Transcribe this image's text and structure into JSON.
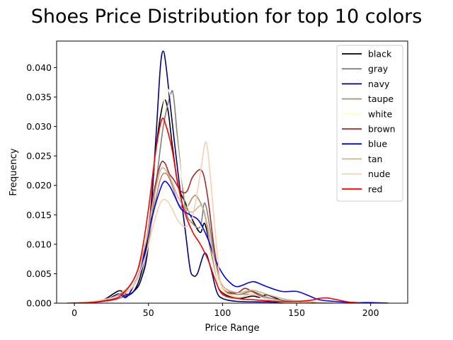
{
  "chart_data": {
    "type": "line",
    "title": "Shoes Price Distribution for top 10 colors",
    "xlabel": "Price Range",
    "ylabel": "Frequency",
    "xlim": [
      -12,
      225
    ],
    "ylim": [
      0,
      0.0445
    ],
    "xticks": [
      0,
      50,
      100,
      150,
      200
    ],
    "xtick_labels": [
      "0",
      "50",
      "100",
      "150",
      "200"
    ],
    "yticks": [
      0.0,
      0.005,
      0.01,
      0.015,
      0.02,
      0.025,
      0.03,
      0.035,
      0.04
    ],
    "ytick_labels": [
      "0.000",
      "0.005",
      "0.010",
      "0.015",
      "0.020",
      "0.025",
      "0.030",
      "0.035",
      "0.040"
    ],
    "grid": false,
    "legend_position": "top-right",
    "series": [
      {
        "name": "black",
        "color": "#000000",
        "points": [
          [
            -5,
            0
          ],
          [
            10,
            0.0001
          ],
          [
            20,
            0.0006
          ],
          [
            30,
            0.0021
          ],
          [
            35,
            0.0015
          ],
          [
            40,
            0.002
          ],
          [
            45,
            0.005
          ],
          [
            50,
            0.012
          ],
          [
            55,
            0.026
          ],
          [
            60,
            0.034
          ],
          [
            63,
            0.033
          ],
          [
            66,
            0.027
          ],
          [
            70,
            0.02
          ],
          [
            75,
            0.017
          ],
          [
            80,
            0.014
          ],
          [
            85,
            0.012
          ],
          [
            88,
            0.0135
          ],
          [
            92,
            0.009
          ],
          [
            96,
            0.004
          ],
          [
            100,
            0.0018
          ],
          [
            110,
            0.0008
          ],
          [
            120,
            0.0012
          ],
          [
            125,
            0.001
          ],
          [
            130,
            0.0014
          ],
          [
            140,
            0.0005
          ],
          [
            150,
            0.0002
          ],
          [
            165,
            0
          ]
        ]
      },
      {
        "name": "gray",
        "color": "#808080",
        "points": [
          [
            -5,
            0
          ],
          [
            10,
            0.0001
          ],
          [
            20,
            0.0003
          ],
          [
            30,
            0.0008
          ],
          [
            40,
            0.002
          ],
          [
            45,
            0.004
          ],
          [
            50,
            0.01
          ],
          [
            55,
            0.02
          ],
          [
            60,
            0.03
          ],
          [
            65,
            0.0355
          ],
          [
            67,
            0.035
          ],
          [
            70,
            0.027
          ],
          [
            75,
            0.016
          ],
          [
            80,
            0.0135
          ],
          [
            85,
            0.013
          ],
          [
            88,
            0.017
          ],
          [
            92,
            0.012
          ],
          [
            96,
            0.006
          ],
          [
            100,
            0.003
          ],
          [
            110,
            0.0015
          ],
          [
            120,
            0.002
          ],
          [
            130,
            0.001
          ],
          [
            140,
            0.0005
          ],
          [
            150,
            0.0002
          ],
          [
            160,
            0
          ]
        ]
      },
      {
        "name": "navy",
        "color": "#000080",
        "points": [
          [
            -5,
            0
          ],
          [
            10,
            0.0001
          ],
          [
            20,
            0.0004
          ],
          [
            30,
            0.0016
          ],
          [
            35,
            0.0012
          ],
          [
            40,
            0.002
          ],
          [
            45,
            0.004
          ],
          [
            50,
            0.01
          ],
          [
            55,
            0.028
          ],
          [
            58,
            0.04
          ],
          [
            60,
            0.0428
          ],
          [
            62,
            0.04
          ],
          [
            65,
            0.033
          ],
          [
            70,
            0.022
          ],
          [
            75,
            0.012
          ],
          [
            78,
            0.006
          ],
          [
            80,
            0.0047
          ],
          [
            83,
            0.005
          ],
          [
            88,
            0.0085
          ],
          [
            92,
            0.006
          ],
          [
            96,
            0.002
          ],
          [
            100,
            0.0008
          ],
          [
            110,
            0.0003
          ],
          [
            130,
            0.0002
          ],
          [
            150,
            0.0001
          ],
          [
            170,
            0
          ]
        ]
      },
      {
        "name": "taupe",
        "color": "#b38b6d",
        "points": [
          [
            -5,
            0
          ],
          [
            10,
            0.0002
          ],
          [
            20,
            0.0005
          ],
          [
            30,
            0.0012
          ],
          [
            40,
            0.003
          ],
          [
            48,
            0.008
          ],
          [
            53,
            0.015
          ],
          [
            58,
            0.021
          ],
          [
            62,
            0.022
          ],
          [
            66,
            0.02
          ],
          [
            70,
            0.017
          ],
          [
            75,
            0.016
          ],
          [
            80,
            0.018
          ],
          [
            83,
            0.018
          ],
          [
            88,
            0.015
          ],
          [
            92,
            0.009
          ],
          [
            96,
            0.004
          ],
          [
            100,
            0.002
          ],
          [
            110,
            0.0015
          ],
          [
            120,
            0.0015
          ],
          [
            130,
            0.0008
          ],
          [
            140,
            0.0003
          ],
          [
            160,
            0
          ]
        ]
      },
      {
        "name": "white",
        "color": "#fffacd",
        "points": [
          [
            -5,
            0
          ],
          [
            10,
            0.0002
          ],
          [
            20,
            0.0006
          ],
          [
            30,
            0.0012
          ],
          [
            40,
            0.004
          ],
          [
            48,
            0.012
          ],
          [
            53,
            0.022
          ],
          [
            58,
            0.03
          ],
          [
            62,
            0.036
          ],
          [
            65,
            0.035
          ],
          [
            68,
            0.03
          ],
          [
            72,
            0.022
          ],
          [
            77,
            0.016
          ],
          [
            82,
            0.014
          ],
          [
            88,
            0.012
          ],
          [
            92,
            0.008
          ],
          [
            96,
            0.004
          ],
          [
            100,
            0.002
          ],
          [
            110,
            0.001
          ],
          [
            120,
            0.0015
          ],
          [
            130,
            0.0008
          ],
          [
            140,
            0.0003
          ],
          [
            160,
            0
          ]
        ]
      },
      {
        "name": "brown",
        "color": "#a52a2a",
        "points": [
          [
            -5,
            0
          ],
          [
            10,
            0.0001
          ],
          [
            20,
            0.0004
          ],
          [
            30,
            0.0012
          ],
          [
            40,
            0.004
          ],
          [
            48,
            0.01
          ],
          [
            53,
            0.018
          ],
          [
            58,
            0.0235
          ],
          [
            61,
            0.0238
          ],
          [
            64,
            0.022
          ],
          [
            67,
            0.021
          ],
          [
            72,
            0.019
          ],
          [
            76,
            0.019
          ],
          [
            80,
            0.0215
          ],
          [
            86,
            0.0225
          ],
          [
            90,
            0.018
          ],
          [
            94,
            0.01
          ],
          [
            98,
            0.004
          ],
          [
            102,
            0.002
          ],
          [
            110,
            0.0018
          ],
          [
            115,
            0.0025
          ],
          [
            120,
            0.002
          ],
          [
            130,
            0.0007
          ],
          [
            140,
            0.0002
          ],
          [
            160,
            0
          ]
        ]
      },
      {
        "name": "blue",
        "color": "#0000ff",
        "points": [
          [
            -5,
            0
          ],
          [
            10,
            0.0001
          ],
          [
            20,
            0.0004
          ],
          [
            30,
            0.0014
          ],
          [
            35,
            0.001
          ],
          [
            40,
            0.003
          ],
          [
            45,
            0.006
          ],
          [
            50,
            0.012
          ],
          [
            55,
            0.017
          ],
          [
            60,
            0.0205
          ],
          [
            64,
            0.02
          ],
          [
            68,
            0.018
          ],
          [
            72,
            0.016
          ],
          [
            78,
            0.015
          ],
          [
            84,
            0.014
          ],
          [
            90,
            0.011
          ],
          [
            95,
            0.0075
          ],
          [
            100,
            0.005
          ],
          [
            105,
            0.0035
          ],
          [
            110,
            0.0028
          ],
          [
            118,
            0.0035
          ],
          [
            122,
            0.0036
          ],
          [
            130,
            0.0028
          ],
          [
            140,
            0.002
          ],
          [
            150,
            0.002
          ],
          [
            158,
            0.0013
          ],
          [
            165,
            0.0006
          ],
          [
            175,
            0.0003
          ],
          [
            190,
            0.0001
          ],
          [
            200,
            0.0001
          ],
          [
            212,
            0
          ]
        ]
      },
      {
        "name": "tan",
        "color": "#d2b48c",
        "points": [
          [
            -5,
            0
          ],
          [
            10,
            0.0002
          ],
          [
            20,
            0.0006
          ],
          [
            30,
            0.0015
          ],
          [
            40,
            0.004
          ],
          [
            48,
            0.01
          ],
          [
            53,
            0.017
          ],
          [
            58,
            0.0225
          ],
          [
            62,
            0.0225
          ],
          [
            66,
            0.0205
          ],
          [
            70,
            0.018
          ],
          [
            75,
            0.016
          ],
          [
            80,
            0.0155
          ],
          [
            86,
            0.0165
          ],
          [
            90,
            0.013
          ],
          [
            95,
            0.007
          ],
          [
            100,
            0.003
          ],
          [
            110,
            0.0018
          ],
          [
            120,
            0.0022
          ],
          [
            130,
            0.0015
          ],
          [
            140,
            0.0008
          ],
          [
            150,
            0.0004
          ],
          [
            160,
            0.0002
          ],
          [
            175,
            0
          ]
        ]
      },
      {
        "name": "nude",
        "color": "#f5cfb0",
        "points": [
          [
            -5,
            0
          ],
          [
            10,
            0.0002
          ],
          [
            20,
            0.0006
          ],
          [
            30,
            0.0012
          ],
          [
            40,
            0.003
          ],
          [
            48,
            0.008
          ],
          [
            53,
            0.013
          ],
          [
            58,
            0.017
          ],
          [
            62,
            0.0175
          ],
          [
            66,
            0.016
          ],
          [
            70,
            0.014
          ],
          [
            75,
            0.013
          ],
          [
            80,
            0.015
          ],
          [
            85,
            0.022
          ],
          [
            88,
            0.027
          ],
          [
            90,
            0.026
          ],
          [
            93,
            0.018
          ],
          [
            97,
            0.007
          ],
          [
            100,
            0.0025
          ],
          [
            110,
            0.001
          ],
          [
            120,
            0.0015
          ],
          [
            130,
            0.0007
          ],
          [
            140,
            0.0002
          ],
          [
            160,
            0
          ]
        ]
      },
      {
        "name": "red",
        "color": "#ff0000",
        "points": [
          [
            -5,
            0
          ],
          [
            10,
            0.0001
          ],
          [
            20,
            0.0004
          ],
          [
            30,
            0.001
          ],
          [
            40,
            0.004
          ],
          [
            45,
            0.008
          ],
          [
            50,
            0.016
          ],
          [
            55,
            0.026
          ],
          [
            59,
            0.0312
          ],
          [
            62,
            0.03
          ],
          [
            66,
            0.026
          ],
          [
            70,
            0.02
          ],
          [
            75,
            0.015
          ],
          [
            80,
            0.012
          ],
          [
            85,
            0.01
          ],
          [
            90,
            0.0075
          ],
          [
            95,
            0.004
          ],
          [
            100,
            0.0015
          ],
          [
            110,
            0.0008
          ],
          [
            120,
            0.0006
          ],
          [
            130,
            0.0004
          ],
          [
            140,
            0.0003
          ],
          [
            150,
            0.0003
          ],
          [
            160,
            0.0005
          ],
          [
            165,
            0.0008
          ],
          [
            170,
            0.0009
          ],
          [
            175,
            0.0007
          ],
          [
            185,
            0.0002
          ],
          [
            195,
            0
          ]
        ]
      }
    ]
  }
}
